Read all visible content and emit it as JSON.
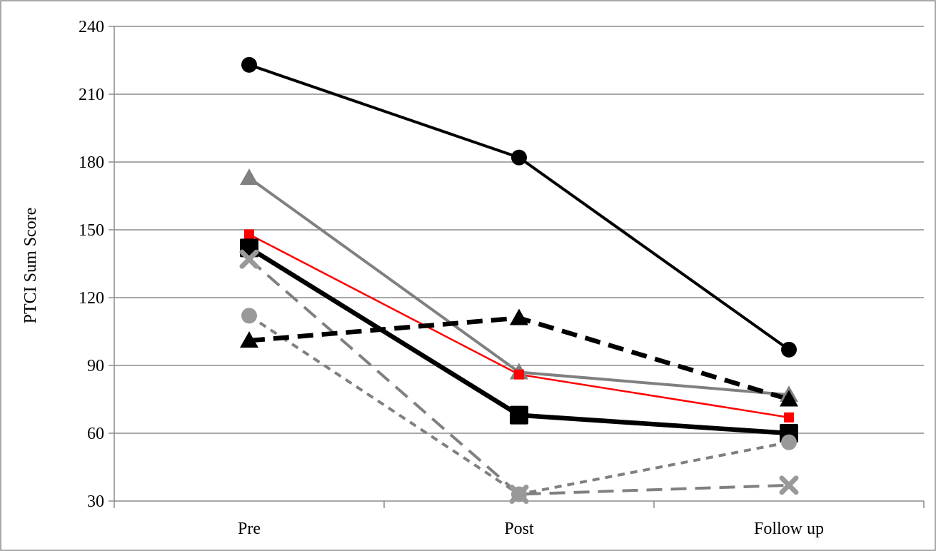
{
  "chart_data": {
    "type": "line",
    "title": "",
    "xlabel": "",
    "ylabel": "PTCI Sum Score",
    "categories": [
      "Pre",
      "Post",
      "Follow up"
    ],
    "ylim": [
      30,
      240
    ],
    "yticks": [
      30,
      60,
      90,
      120,
      150,
      180,
      210,
      240
    ],
    "grid": "horizontal",
    "legend": "none",
    "series": [
      {
        "values": [
          223,
          182,
          97
        ],
        "color": "#000000",
        "line_style": "solid",
        "line_weight": "medium",
        "marker": "circle"
      },
      {
        "values": [
          173,
          87,
          77
        ],
        "color": "#808080",
        "line_style": "solid",
        "line_weight": "medium",
        "marker": "triangle"
      },
      {
        "values": [
          148,
          86,
          67
        ],
        "color": "#ff0000",
        "line_style": "solid",
        "line_weight": "thin",
        "marker": "square-small"
      },
      {
        "values": [
          142,
          68,
          60
        ],
        "color": "#000000",
        "line_style": "solid",
        "line_weight": "thick",
        "marker": "square"
      },
      {
        "values": [
          137,
          33,
          37
        ],
        "color": "#808080",
        "line_style": "long-dash",
        "line_weight": "medium",
        "marker": "x"
      },
      {
        "values": [
          112,
          33,
          56
        ],
        "color": "#808080",
        "line_style": "short-dash",
        "line_weight": "medium",
        "marker": "circle-gray"
      },
      {
        "values": [
          101,
          111,
          75
        ],
        "color": "#000000",
        "line_style": "long-dash",
        "line_weight": "thick",
        "marker": "triangle"
      }
    ]
  }
}
